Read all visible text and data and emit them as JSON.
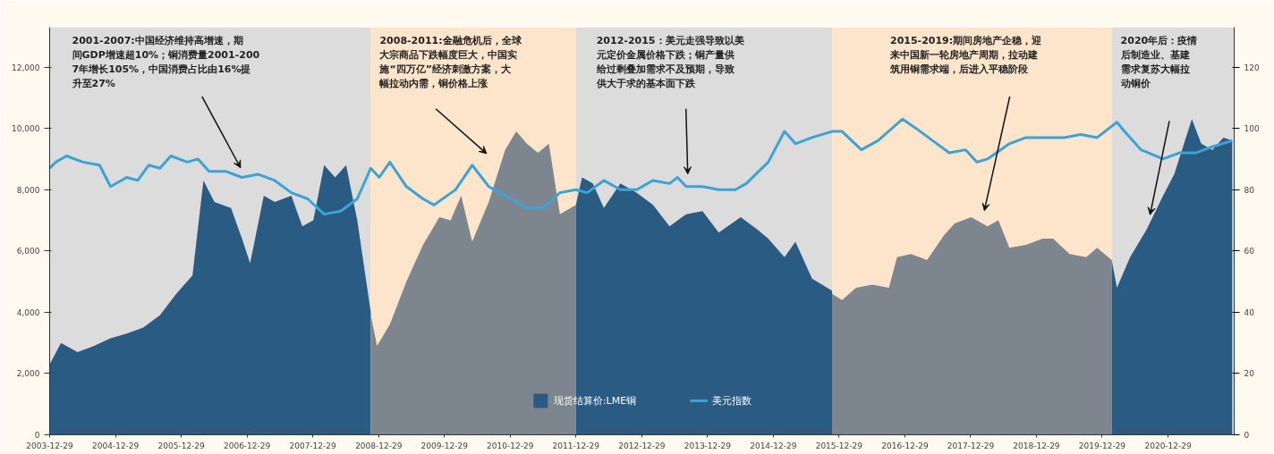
{
  "chart_data": {
    "type": "area",
    "xlim": [
      "2003-12-29",
      "2021-12-31"
    ],
    "xticks": [
      "2003-12-29",
      "2004-12-29",
      "2005-12-29",
      "2006-12-29",
      "2007-12-29",
      "2008-12-29",
      "2009-12-29",
      "2010-12-29",
      "2011-12-29",
      "2012-12-29",
      "2013-12-29",
      "2014-12-29",
      "2015-12-29",
      "2016-12-29",
      "2017-12-29",
      "2018-12-29",
      "2019-12-29",
      "2020-12-29"
    ],
    "ylim": [
      0,
      13300
    ],
    "yticks": [
      0,
      {
        "value": 2000,
        "label": "2,000"
      },
      {
        "value": 4000,
        "label": "4,000"
      },
      {
        "value": 6000,
        "label": "6,000"
      },
      {
        "value": 8000,
        "label": "8,000"
      },
      {
        "value": 10000,
        "label": "10,000"
      },
      {
        "value": 12000,
        "label": "12,000"
      }
    ],
    "y2lim": [
      0,
      133
    ],
    "y2ticks": [
      0,
      20,
      40,
      60,
      80,
      100,
      120
    ],
    "grid": false,
    "legend": "bottom",
    "series": [
      {
        "name": "现货结算价:LME铜",
        "color": "#2a5b83",
        "x": [
          "2003-12-29",
          "2004-03-01",
          "2004-06-01",
          "2004-09-01",
          "2004-12-01",
          "2005-03-01",
          "2005-06-01",
          "2005-09-01",
          "2005-12-01",
          "2006-03-01",
          "2006-05-01",
          "2006-07-01",
          "2006-10-01",
          "2006-12-01",
          "2007-01-15",
          "2007-04-01",
          "2007-06-01",
          "2007-09-01",
          "2007-11-01",
          "2008-01-01",
          "2008-03-01",
          "2008-05-01",
          "2008-07-01",
          "2008-09-01",
          "2008-11-15"
        ],
        "values": [
          2300,
          3000,
          2700,
          2900,
          3150,
          3300,
          3500,
          3900,
          4600,
          5200,
          8300,
          7600,
          7400,
          6400,
          5600,
          7800,
          7600,
          7800,
          6800,
          7000,
          8800,
          8400,
          8800,
          7000,
          4000
        ]
      },
      {
        "color": "#7d868f",
        "x": [
          "2008-11-15",
          "2008-12-20",
          "2009-03-01",
          "2009-06-01",
          "2009-09-01",
          "2009-12-01",
          "2010-02-01",
          "2010-04-01",
          "2010-06-01",
          "2010-09-01",
          "2010-12-01",
          "2011-02-01",
          "2011-04-01",
          "2011-06-01",
          "2011-08-01",
          "2011-10-01",
          "2011-12-29"
        ],
        "values": [
          3900,
          2900,
          3600,
          5000,
          6200,
          7100,
          7000,
          7800,
          6300,
          7600,
          9300,
          9900,
          9500,
          9200,
          9500,
          7200,
          7500
        ]
      },
      {
        "color": "#2a5b83",
        "x": [
          "2011-12-29",
          "2012-02-01",
          "2012-04-01",
          "2012-06-01",
          "2012-09-01",
          "2012-12-01",
          "2013-03-01",
          "2013-06-01",
          "2013-09-01",
          "2013-12-01",
          "2014-03-01",
          "2014-07-01",
          "2014-10-01",
          "2014-12-01",
          "2015-03-01",
          "2015-05-01",
          "2015-08-01",
          "2015-11-20"
        ],
        "values": [
          7500,
          8400,
          8200,
          7400,
          8200,
          7900,
          7500,
          6800,
          7200,
          7300,
          6600,
          7100,
          6700,
          6400,
          5800,
          6300,
          5100,
          4700
        ]
      },
      {
        "color": "#7d868f",
        "x": [
          "2015-11-20",
          "2016-01-15",
          "2016-04-01",
          "2016-07-01",
          "2016-10-01",
          "2016-11-15",
          "2017-02-01",
          "2017-05-01",
          "2017-08-01",
          "2017-10-01",
          "2018-01-01",
          "2018-04-01",
          "2018-06-01",
          "2018-08-01",
          "2018-11-01",
          "2019-02-01",
          "2019-04-01",
          "2019-07-01",
          "2019-10-01",
          "2019-12-01",
          "2020-02-20"
        ],
        "values": [
          4600,
          4400,
          4800,
          4900,
          4800,
          5800,
          5900,
          5700,
          6500,
          6900,
          7100,
          6800,
          7000,
          6100,
          6200,
          6400,
          6400,
          5900,
          5800,
          6100,
          5700
        ]
      },
      {
        "color": "#2a5b83",
        "x": [
          "2020-02-20",
          "2020-03-20",
          "2020-06-01",
          "2020-09-01",
          "2020-12-01",
          "2021-02-01",
          "2021-05-10",
          "2021-07-01",
          "2021-09-01",
          "2021-11-01",
          "2021-12-20"
        ],
        "values": [
          5700,
          4800,
          5800,
          6700,
          7800,
          8500,
          10300,
          9500,
          9300,
          9700,
          9600
        ]
      },
      {
        "name": "美元指数",
        "type": "line",
        "axis": "y2",
        "color": "#3ba3d6",
        "x": [
          "2003-12-29",
          "2004-02-01",
          "2004-04-01",
          "2004-07-01",
          "2004-10-01",
          "2004-12-01",
          "2005-03-01",
          "2005-05-01",
          "2005-07-01",
          "2005-09-01",
          "2005-11-01",
          "2006-02-01",
          "2006-04-01",
          "2006-06-01",
          "2006-09-01",
          "2006-12-01",
          "2007-03-01",
          "2007-06-01",
          "2007-09-01",
          "2007-12-01",
          "2008-03-01",
          "2008-06-01",
          "2008-09-01",
          "2008-11-15",
          "2009-01-01",
          "2009-03-01",
          "2009-06-01",
          "2009-09-01",
          "2009-11-01",
          "2010-03-01",
          "2010-06-01",
          "2010-09-01",
          "2010-11-01",
          "2011-04-01",
          "2011-07-01",
          "2011-10-01",
          "2011-12-29",
          "2012-03-01",
          "2012-06-01",
          "2012-09-01",
          "2012-12-01",
          "2013-03-01",
          "2013-06-01",
          "2013-07-15",
          "2013-09-01",
          "2013-12-01",
          "2014-03-01",
          "2014-06-01",
          "2014-08-01",
          "2014-12-01",
          "2015-03-01",
          "2015-05-01",
          "2015-08-01",
          "2015-11-20",
          "2016-01-15",
          "2016-05-01",
          "2016-08-01",
          "2016-12-15",
          "2017-03-01",
          "2017-06-01",
          "2017-09-01",
          "2017-12-01",
          "2018-02-01",
          "2018-04-01",
          "2018-08-01",
          "2018-11-01",
          "2019-03-01",
          "2019-06-01",
          "2019-09-01",
          "2019-12-01",
          "2020-03-20",
          "2020-05-01",
          "2020-08-01",
          "2020-12-01",
          "2021-03-01",
          "2021-06-01",
          "2021-09-01",
          "2021-12-20"
        ],
        "values": [
          87,
          89,
          91,
          89,
          88,
          81,
          84,
          83,
          88,
          87,
          91,
          89,
          90,
          86,
          86,
          84,
          85,
          83,
          79,
          77,
          72,
          73,
          77,
          87,
          84,
          89,
          81,
          77,
          75,
          80,
          88,
          81,
          79,
          74,
          74,
          79,
          80,
          79,
          83,
          80,
          80,
          83,
          82,
          84,
          81,
          81,
          80,
          80,
          82,
          89,
          99,
          95,
          97,
          99,
          99,
          93,
          96,
          103,
          100,
          96,
          92,
          93,
          89,
          90,
          95,
          97,
          97,
          97,
          98,
          97,
          102,
          99,
          93,
          90,
          92,
          92,
          94,
          96
        ]
      }
    ],
    "bands": [
      {
        "axis": "x",
        "from": "2003-12-29",
        "to": "2008-11-15",
        "color": "#dcdcdc"
      },
      {
        "axis": "x",
        "from": "2008-11-15",
        "to": "2011-12-29",
        "color": "#fde5cc"
      },
      {
        "axis": "x",
        "from": "2011-12-29",
        "to": "2015-11-20",
        "color": "#dcdcdc"
      },
      {
        "axis": "x",
        "from": "2015-11-20",
        "to": "2020-02-20",
        "color": "#fde5cc"
      },
      {
        "axis": "x",
        "from": "2020-02-20",
        "to": "2021-12-31",
        "color": "#dcdcdc"
      }
    ],
    "annotations": [
      "2001-2007:中国经济维持高增速，期间GDP增速超10%；铜消费量2001-2007年增长105%，中国消费占比由16%提升至27%",
      "2008-2011:金融危机后，全球大宗商品下跌幅度巨大，中国实施“四万亿”经济刺激方案，大幅拉动内需，铜价格上涨",
      "2012-2015：美元走强导致以美元定价金属价格下跌；铜产量供给过剩叠加需求不及预期，导致供大于求的基本面下跌",
      "2015-2019:期间房地产企稳，迎来中国新一轮房地产周期，拉动建筑用铜需求端，后进入平稳阶段",
      "2020年后：疫情后制造业、基建需求复苏大幅拉动铜价"
    ]
  }
}
